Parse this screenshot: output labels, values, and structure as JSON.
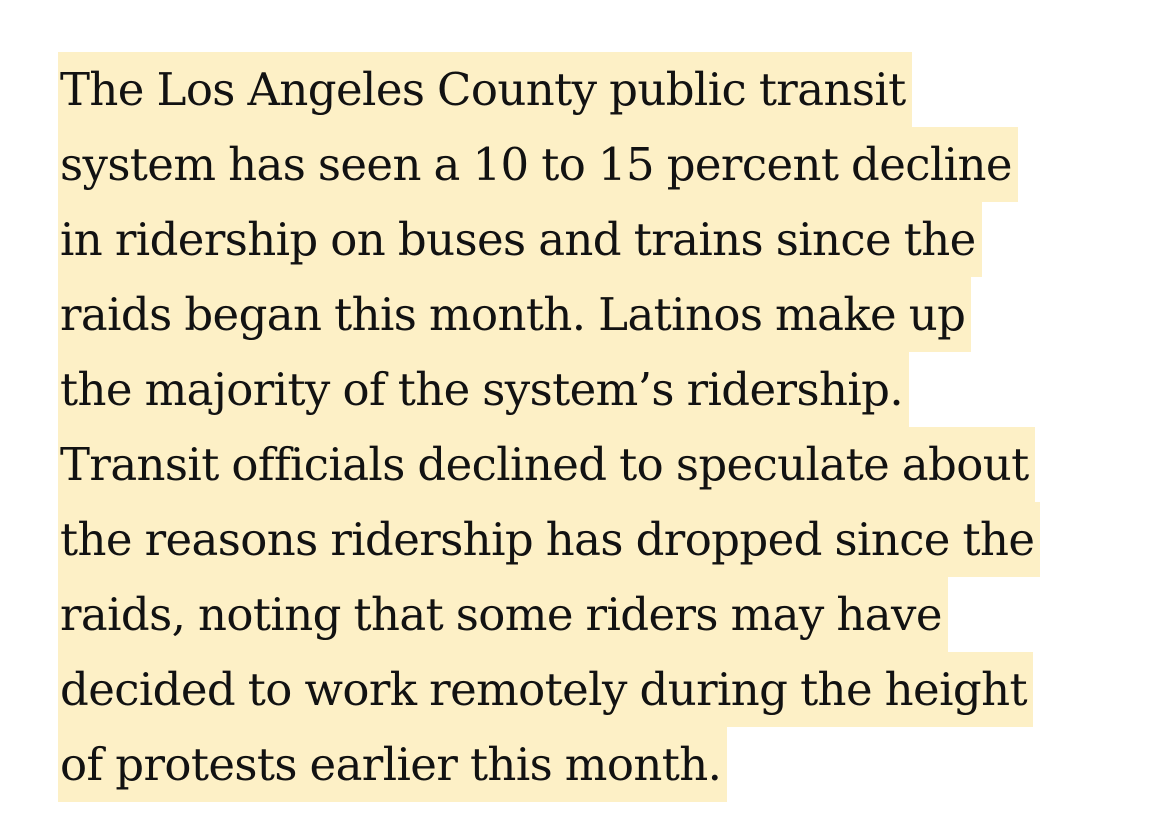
{
  "article": {
    "lines": [
      "The Los Angeles County public transit",
      "system has seen a 10 to 15 percent decline",
      "in ridership on buses and trains since the",
      "raids began this month. Latinos make up",
      "the majority of the system’s ridership.",
      "Transit officials declined to speculate about",
      "the reasons ridership has dropped since the",
      "raids, noting that some riders may have",
      "decided to work remotely during the height",
      "of protests earlier this month."
    ]
  },
  "colors": {
    "highlight": "#fdf0c6",
    "text": "#121212",
    "background": "#ffffff"
  }
}
